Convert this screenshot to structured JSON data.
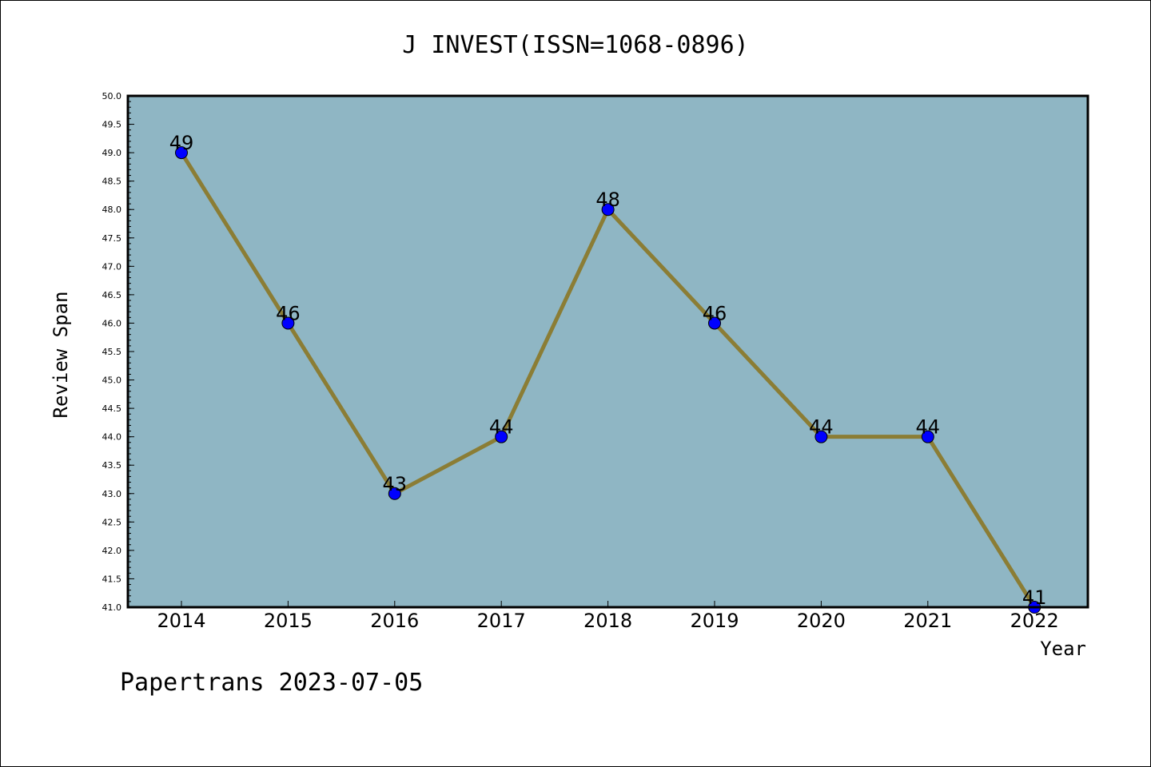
{
  "chart_data": {
    "type": "line",
    "title": "J INVEST(ISSN=1068-0896)",
    "xlabel": "Year",
    "ylabel": "Review Span",
    "x": [
      "2014",
      "2015",
      "2016",
      "2017",
      "2018",
      "2019",
      "2020",
      "2021",
      "2022"
    ],
    "series": [
      {
        "values": [
          49,
          46,
          43,
          44,
          48,
          46,
          44,
          44,
          41
        ],
        "data_labels": [
          "49",
          "46",
          "43",
          "44",
          "48",
          "46",
          "44",
          "44",
          "41"
        ]
      }
    ],
    "ylim": [
      41.0,
      50.0
    ],
    "y_ticks": [
      "41.0",
      "41.5",
      "42.0",
      "42.5",
      "43.0",
      "43.5",
      "44.0",
      "44.5",
      "45.0",
      "45.5",
      "46.0",
      "46.5",
      "47.0",
      "47.5",
      "48.0",
      "48.5",
      "49.0",
      "49.5",
      "50.0"
    ],
    "grid": false,
    "colors": {
      "plot_background": "#8fb6c4",
      "line": "#8b7d35",
      "marker": "#0000ff"
    }
  },
  "footer": "Papertrans 2023-07-05"
}
